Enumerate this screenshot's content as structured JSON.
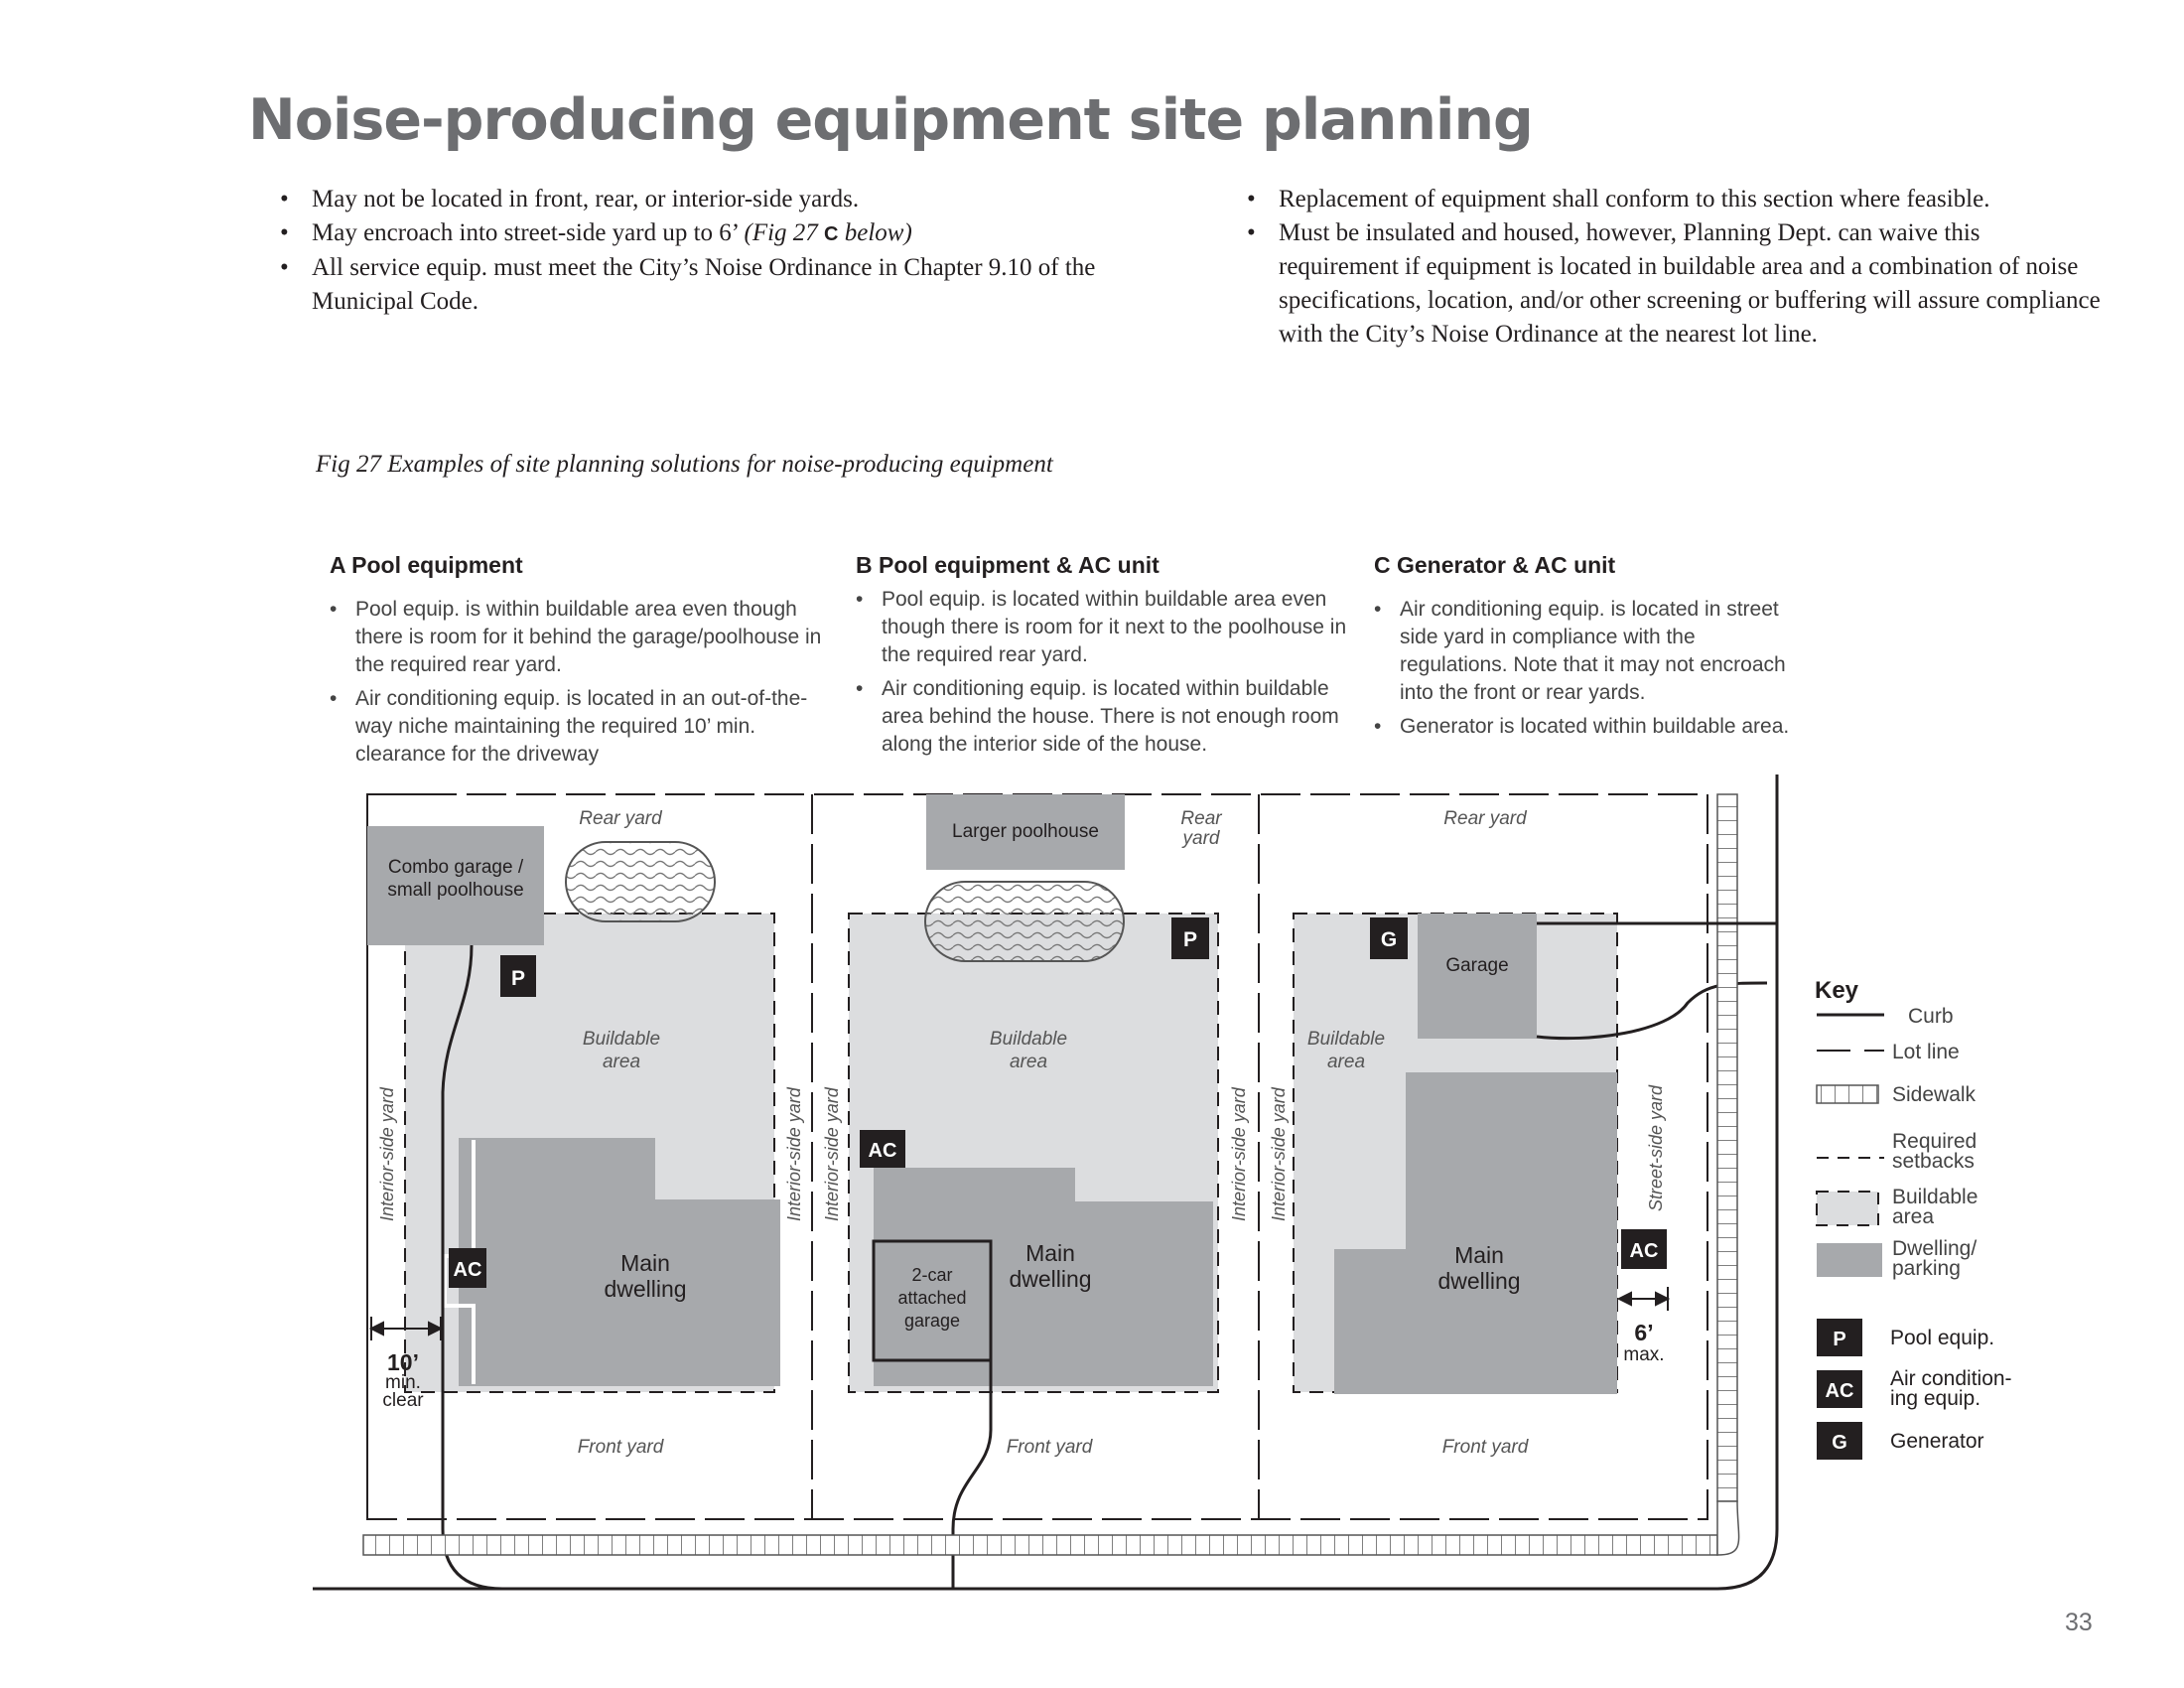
{
  "page": {
    "title": "Noise-producing equipment site planning",
    "page_number": "33"
  },
  "rules": {
    "left": [
      {
        "text": "May not be located in front, rear, or interior-side yards."
      },
      {
        "pre": "May encroach into street-side yard up to 6’ ",
        "ref_open": "(Fig 27 ",
        "ref_letter": "C",
        "ref_close": " below)"
      },
      {
        "text": "All service equip. must meet the City’s Noise Ordinance in Chapter 9.10 of the Municipal Code."
      }
    ],
    "right": [
      {
        "text": "Replacement of equipment shall conform to this section where feasible."
      },
      {
        "text": "Must be insulated and housed, however, Planning Dept. can waive this requirement if equipment is located in buildable area and a combination of noise specifications, location, and/or other screening or buffering will assure compliance with the City’s Noise Ordinance at the nearest lot line."
      }
    ]
  },
  "figure": {
    "caption": "Fig 27  Examples of site planning solutions for noise-producing equipment"
  },
  "examples": {
    "a": {
      "heading": "A Pool equipment",
      "bullets": [
        "Pool equip. is within buildable area even though there is room for it behind the garage/poolhouse in the required rear yard.",
        "Air conditioning equip. is located in an out-of-the-way niche maintaining the required 10’ min. clearance for the driveway"
      ]
    },
    "b": {
      "heading": "B Pool equipment & AC unit",
      "bullets": [
        "Pool equip. is located within buildable area even though there is room for it next to the poolhouse in the required rear yard.",
        "Air conditioning equip. is located within buildable area behind the house. There is not enough room along the interior side of the house."
      ]
    },
    "c": {
      "heading": "C Generator & AC unit",
      "bullets": [
        "Air conditioning equip. is located in street side yard in compliance with the regulations. Note that it may not encroach into the front or rear yards.",
        "Generator is located within buildable area."
      ]
    }
  },
  "site_plan": {
    "labels": {
      "rear_yard": "Rear yard",
      "rear": "Rear",
      "yard": "yard",
      "front_yard": "Front yard",
      "buildable": "Buildable",
      "area": "area",
      "interior_side_yard": "Interior-side yard",
      "street_side_yard": "Street-side yard",
      "main": "Main",
      "dwelling": "dwelling",
      "combo_garage_1": "Combo garage /",
      "combo_garage_2": "small poolhouse",
      "larger_poolhouse": "Larger poolhouse",
      "garage": "Garage",
      "attached_1": "2-car",
      "attached_2": "attached",
      "attached_3": "garage",
      "clear_value": "10’",
      "clear_1": "min.",
      "clear_2": "clear",
      "max_value": "6’",
      "max_label": "max.",
      "p_code": "P",
      "ac_code": "AC",
      "g_code": "G"
    }
  },
  "key": {
    "title": "Key",
    "curb": "Curb",
    "lot_line": "Lot line",
    "sidewalk": "Sidewalk",
    "setbacks_1": "Required",
    "setbacks_2": "setbacks",
    "buildable_1": "Buildable",
    "buildable_2": "area",
    "dwelling_1": "Dwelling/",
    "dwelling_2": "parking",
    "pool_equip": "Pool equip.",
    "ac_1": "Air condition-",
    "ac_2": "ing equip.",
    "generator": "Generator"
  },
  "colors": {
    "title_gray": "#6d6e71",
    "buildable_fill": "#dcdddf",
    "dwelling_fill": "#a7a9ac",
    "equipment_box": "#231f20"
  }
}
